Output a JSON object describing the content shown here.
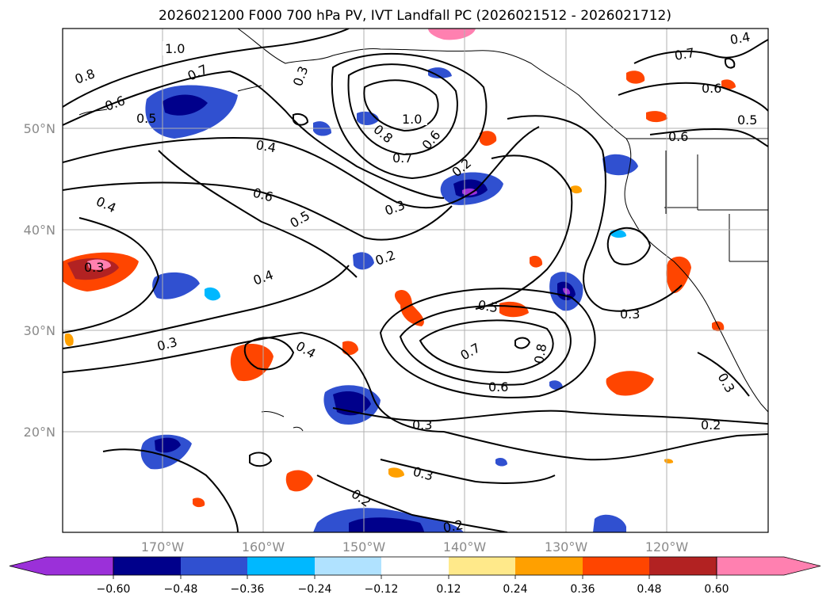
{
  "title": "2026021200 F000 700 hPa PV, IVT Landfall PC (2026021512 - 2026021712)",
  "map": {
    "lat_ticks": [
      "50°N",
      "40°N",
      "30°N",
      "20°N"
    ],
    "lon_ticks": [
      "170°W",
      "160°W",
      "150°W",
      "140°W",
      "130°W",
      "120°W"
    ],
    "contour_labels": [
      "1.0",
      "0.8",
      "0.7",
      "0.6",
      "0.5",
      "0.4",
      "0.3",
      "1.0",
      "0.8",
      "0.7",
      "0.6",
      "0.2",
      "0.3",
      "0.5",
      "0.4",
      "0.6",
      "0.4",
      "0.3",
      "0.2",
      "0.5",
      "0.7",
      "0.8",
      "0.6",
      "0.3",
      "0.4",
      "0.3",
      "0.3",
      "0.2",
      "0.3",
      "0.2",
      "0.4",
      "0.7",
      "0.6",
      "0.5",
      "0.6",
      "0.2",
      "0.3"
    ]
  },
  "colorbar": {
    "ticks": [
      "−0.60",
      "−0.48",
      "−0.36",
      "−0.24",
      "−0.12",
      "0.12",
      "0.24",
      "0.36",
      "0.48",
      "0.60"
    ],
    "colors": [
      "#9b30d9",
      "#00008b",
      "#3050d0",
      "#00b8ff",
      "#b0e2ff",
      "#ffffff",
      "#ffe98a",
      "#ffa000",
      "#ff4500",
      "#b22222",
      "#ff80b0"
    ]
  }
}
